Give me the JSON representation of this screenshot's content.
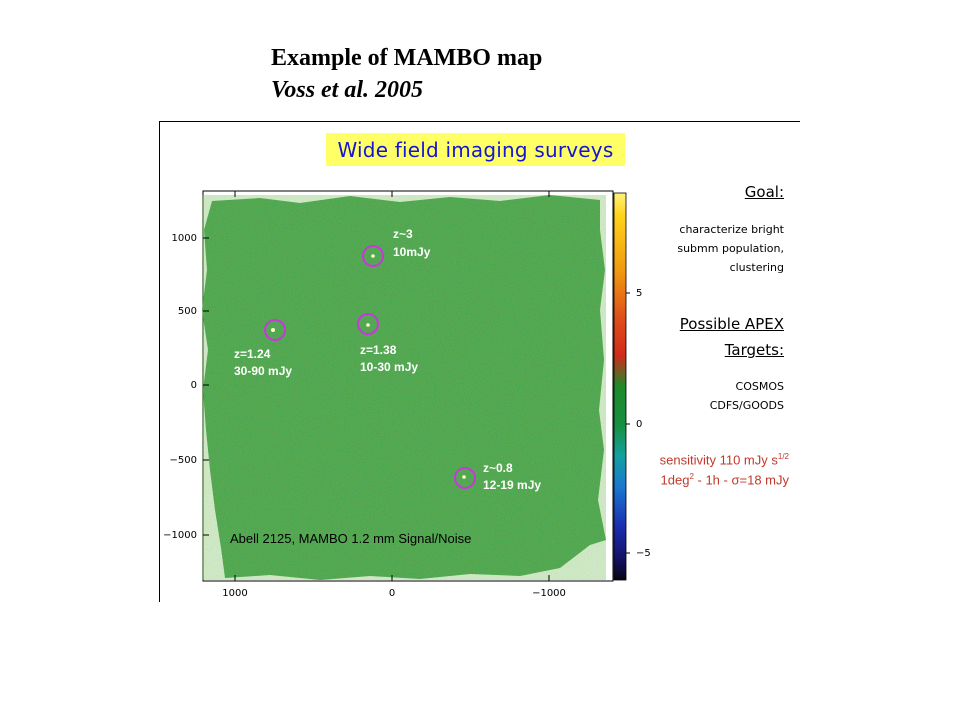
{
  "slide": {
    "title": "Example of MAMBO map",
    "subtitle": "Voss et al. 2005"
  },
  "figure": {
    "banner": "Wide field imaging surveys",
    "map_label": "Abell 2125, MAMBO 1.2 mm Signal/Noise",
    "y_ticks": [
      "1000",
      "500",
      "0",
      "−500",
      "−1000"
    ],
    "x_ticks": [
      "1000",
      "0",
      "−1000"
    ],
    "colorbar_ticks": [
      "5",
      "0",
      "−5"
    ],
    "sources": [
      {
        "z": "z~3",
        "flux": "10mJy"
      },
      {
        "z": "z=1.24",
        "flux": "30-90 mJy"
      },
      {
        "z": "z=1.38",
        "flux": "10-30 mJy"
      },
      {
        "z": "z~0.8",
        "flux": "12-19 mJy"
      }
    ],
    "colors": {
      "map_green": "#1f8c2f",
      "circle": "#c03fd0",
      "banner_bg": "#ffff66",
      "banner_text": "#1515d6",
      "note_red": "#c0392b"
    }
  },
  "sidebar": {
    "goal_heading": "Goal:",
    "goal_lines": [
      "characterize bright",
      "submm population,",
      "clustering"
    ],
    "targets_heading_1": "Possible APEX",
    "targets_heading_2": "Targets:",
    "targets": [
      "COSMOS",
      "CDFS/GOODS"
    ],
    "sensitivity_prefix": "sensitivity ",
    "sensitivity_value": "110 mJy s",
    "sensitivity_exp": "1/2",
    "area_prefix": "1deg",
    "area_exp": "2",
    "area_middle": " - 1h - ",
    "sigma": "σ",
    "area_suffix": "=18 mJy"
  }
}
